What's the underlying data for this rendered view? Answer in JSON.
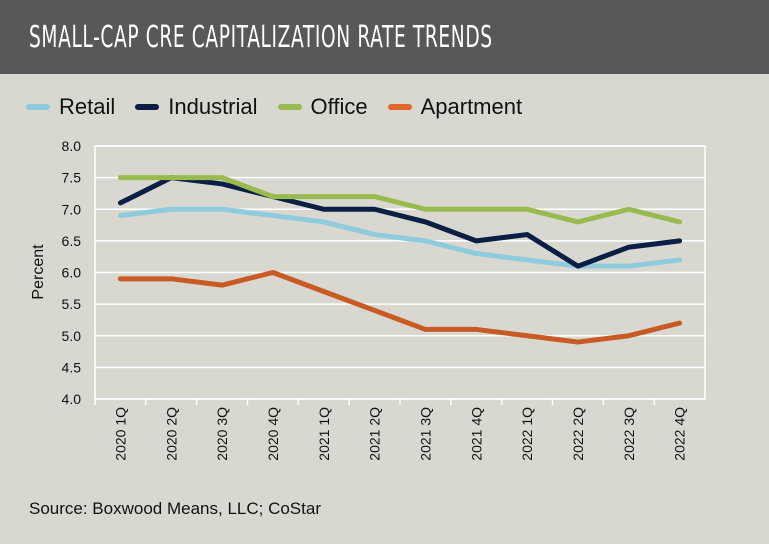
{
  "header": {
    "title": "SMALL-CAP CRE CAPITALIZATION RATE TRENDS"
  },
  "source": "Source: Boxwood Means, LLC; CoStar",
  "chart_data": {
    "type": "line",
    "title": "SMALL-CAP CRE CAPITALIZATION RATE TRENDS",
    "xlabel": "",
    "ylabel": "Percent",
    "ylim": [
      4.0,
      8.0
    ],
    "yticks": [
      "8.0",
      "7.5",
      "7.0",
      "6.5",
      "6.0",
      "5.5",
      "5.0",
      "4.5",
      "4.0"
    ],
    "grid": true,
    "legend": "top",
    "categories": [
      "2020 1Q",
      "2020 2Q",
      "2020 3Q",
      "2020 4Q",
      "2021 1Q",
      "2021 2Q",
      "2021 3Q",
      "2021 4Q",
      "2022 1Q",
      "2022 2Q",
      "2022 3Q",
      "2022 4Q"
    ],
    "series": [
      {
        "name": "Retail",
        "color": "#8ecbdc",
        "values": [
          6.9,
          7.0,
          7.0,
          6.9,
          6.8,
          6.6,
          6.5,
          6.3,
          6.2,
          6.1,
          6.1,
          6.2
        ]
      },
      {
        "name": "Industrial",
        "color": "#0b1f45",
        "values": [
          7.1,
          7.5,
          7.4,
          7.2,
          7.0,
          7.0,
          6.8,
          6.5,
          6.6,
          6.1,
          6.4,
          6.5
        ]
      },
      {
        "name": "Office",
        "color": "#99ba4f",
        "values": [
          7.5,
          7.5,
          7.5,
          7.2,
          7.2,
          7.2,
          7.0,
          7.0,
          7.0,
          6.8,
          7.0,
          6.8
        ]
      },
      {
        "name": "Apartment",
        "color": "#c85a24",
        "values": [
          5.9,
          5.9,
          5.8,
          6.0,
          5.7,
          5.4,
          5.1,
          5.1,
          5.0,
          4.9,
          5.0,
          5.2
        ]
      }
    ]
  }
}
